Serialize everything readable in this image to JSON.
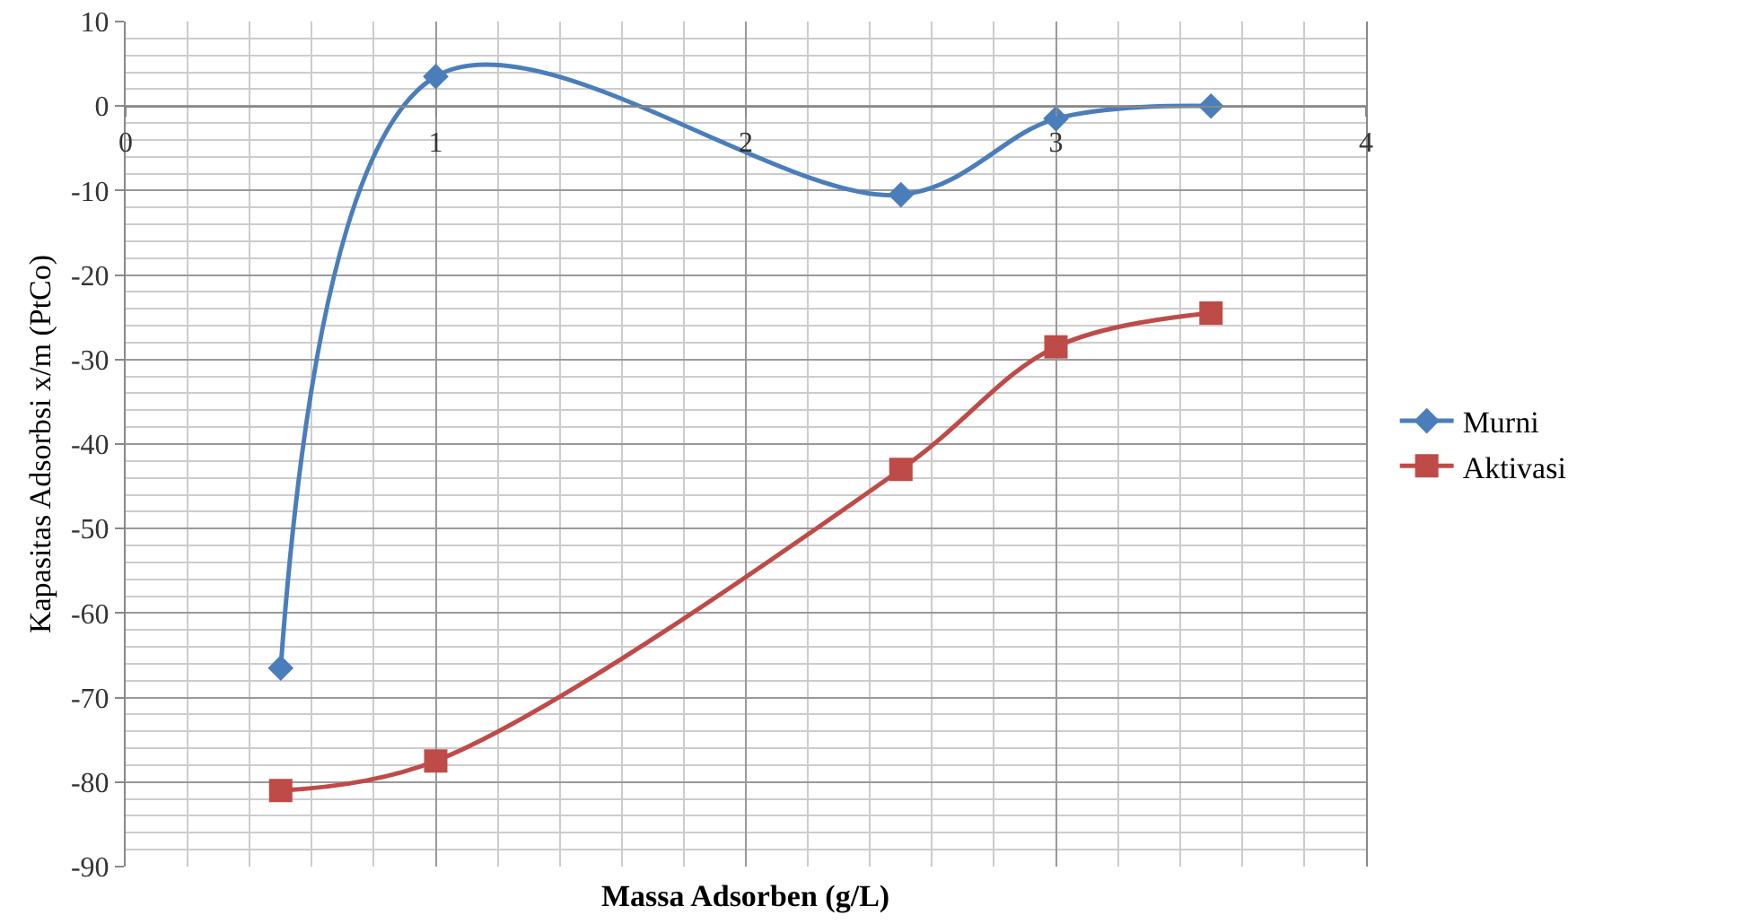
{
  "chart_data": {
    "type": "line",
    "xlabel": "Massa Adsorben (g/L)",
    "ylabel": "Kapasitas Adsorbsi x/m (PtCo)",
    "x": [
      0.5,
      1,
      2.5,
      3,
      3.5
    ],
    "series": [
      {
        "name": "Murni",
        "color": "#4a7ebb",
        "marker": "diamond",
        "values": [
          -66.5,
          3.5,
          -10.5,
          -1.5,
          0
        ]
      },
      {
        "name": "Aktivasi",
        "color": "#be4b48",
        "marker": "square",
        "values": [
          -81,
          -77.5,
          -43,
          -28.5,
          -24.5
        ]
      }
    ],
    "xlim": [
      0,
      4
    ],
    "xticks": [
      0,
      1,
      2,
      3,
      4
    ],
    "ylim": [
      -90,
      10
    ],
    "yticks": [
      -90,
      -80,
      -70,
      -60,
      -50,
      -40,
      -30,
      -20,
      -10,
      0,
      10
    ],
    "grid": true,
    "legend": "right"
  }
}
